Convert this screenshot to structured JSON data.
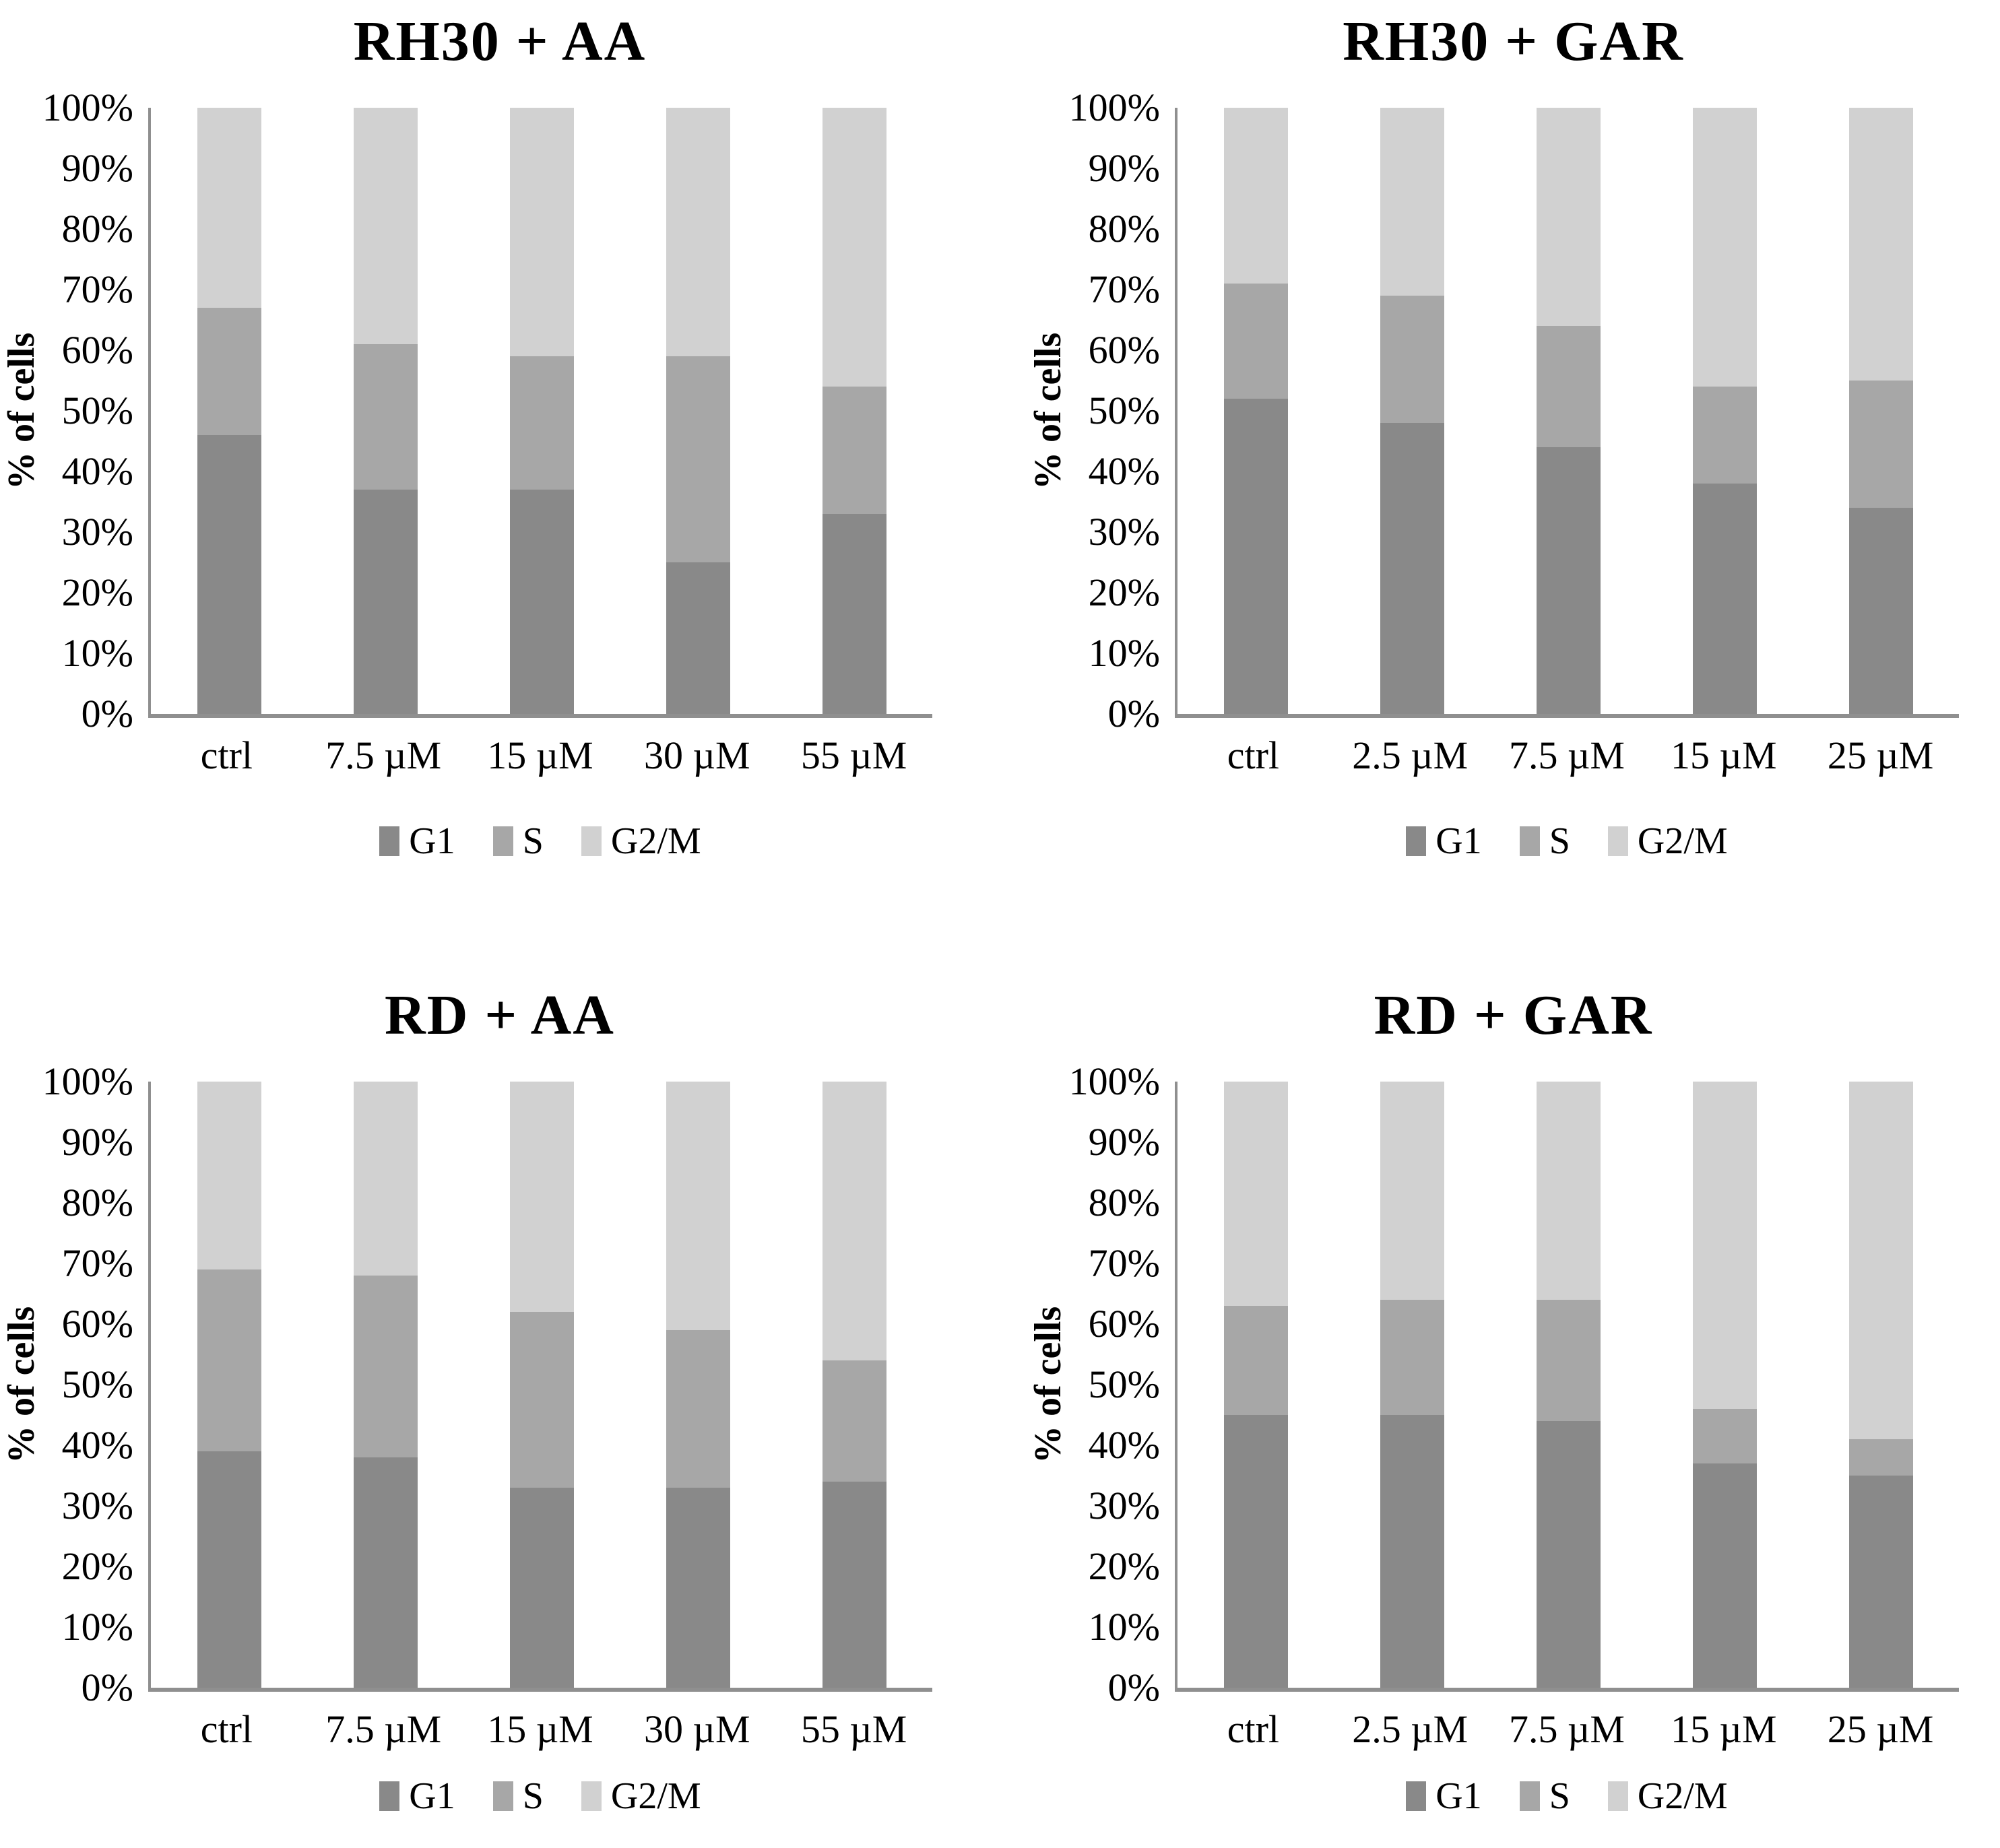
{
  "figure": {
    "y_axis_label": "% of cells",
    "y_tick_labels": [
      "0%",
      "10%",
      "20%",
      "30%",
      "40%",
      "50%",
      "60%",
      "70%",
      "80%",
      "90%",
      "100%"
    ],
    "axis_color": "#8f8f8f",
    "series_colors": {
      "G1": "#898989",
      "S": "#a7a7a7",
      "G2/M": "#d1d1d1"
    }
  },
  "chart_data": [
    {
      "id": "rh30-aa",
      "type": "bar",
      "subtype": "stacked-percent",
      "title": "RH30 + AA",
      "categories": [
        "ctrl",
        "7.5 µM",
        "15 µM",
        "30 µM",
        "55 µM"
      ],
      "series": [
        {
          "name": "G1",
          "values": [
            46,
            37,
            37,
            25,
            33
          ]
        },
        {
          "name": "S",
          "values": [
            21,
            24,
            22,
            34,
            21
          ]
        },
        {
          "name": "G2/M",
          "values": [
            33,
            39,
            41,
            41,
            46
          ]
        }
      ],
      "xlabel": "",
      "ylabel": "% of cells",
      "ylim": [
        0,
        100
      ],
      "y_tick_step": 10,
      "grid": false,
      "legend_position": "bottom"
    },
    {
      "id": "rh30-gar",
      "type": "bar",
      "subtype": "stacked-percent",
      "title": "RH30 + GAR",
      "categories": [
        "ctrl",
        "2.5 µM",
        "7.5 µM",
        "15 µM",
        "25 µM"
      ],
      "series": [
        {
          "name": "G1",
          "values": [
            52,
            48,
            44,
            38,
            34
          ]
        },
        {
          "name": "S",
          "values": [
            19,
            21,
            20,
            16,
            21
          ]
        },
        {
          "name": "G2/M",
          "values": [
            29,
            31,
            36,
            46,
            45
          ]
        }
      ],
      "xlabel": "",
      "ylabel": "% of cells",
      "ylim": [
        0,
        100
      ],
      "y_tick_step": 10,
      "grid": false,
      "legend_position": "bottom"
    },
    {
      "id": "rd-aa",
      "type": "bar",
      "subtype": "stacked-percent",
      "title": "RD + AA",
      "categories": [
        "ctrl",
        "7.5 µM",
        "15 µM",
        "30 µM",
        "55 µM"
      ],
      "series": [
        {
          "name": "G1",
          "values": [
            39,
            38,
            33,
            33,
            34
          ]
        },
        {
          "name": "S",
          "values": [
            30,
            30,
            29,
            26,
            20
          ]
        },
        {
          "name": "G2/M",
          "values": [
            31,
            32,
            38,
            41,
            46
          ]
        }
      ],
      "xlabel": "",
      "ylabel": "% of cells",
      "ylim": [
        0,
        100
      ],
      "y_tick_step": 10,
      "grid": false,
      "legend_position": "bottom"
    },
    {
      "id": "rd-gar",
      "type": "bar",
      "subtype": "stacked-percent",
      "title": "RD + GAR",
      "categories": [
        "ctrl",
        "2.5 µM",
        "7.5 µM",
        "15 µM",
        "25 µM"
      ],
      "series": [
        {
          "name": "G1",
          "values": [
            45,
            45,
            44,
            37,
            35
          ]
        },
        {
          "name": "S",
          "values": [
            18,
            19,
            20,
            9,
            6
          ]
        },
        {
          "name": "G2/M",
          "values": [
            37,
            36,
            36,
            54,
            59
          ]
        }
      ],
      "xlabel": "",
      "ylabel": "% of cells",
      "ylim": [
        0,
        100
      ],
      "y_tick_step": 10,
      "grid": false,
      "legend_position": "bottom"
    }
  ]
}
